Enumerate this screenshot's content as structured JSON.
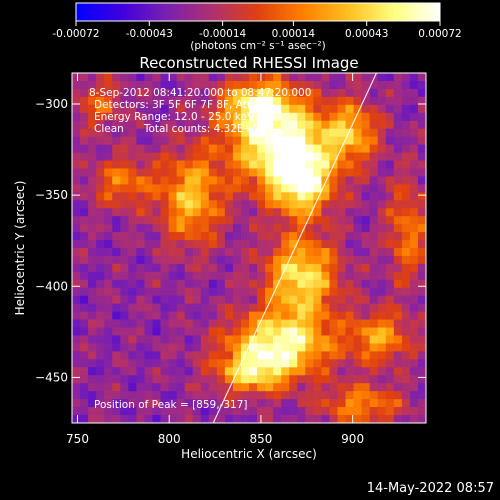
{
  "chart_data": {
    "type": "heatmap",
    "title": "Reconstructed RHESSI Image",
    "xlabel": "Heliocentric X (arcsec)",
    "ylabel": "Heliocentric Y (arcsec)",
    "xlim": [
      747,
      940
    ],
    "ylim": [
      -475,
      -283
    ],
    "x_ticks": [
      750,
      800,
      850,
      900
    ],
    "y_ticks": [
      -300,
      -350,
      -400,
      -450
    ],
    "colorbar": {
      "min": -0.00072,
      "max": 0.00072,
      "tick_values": [
        -0.00072,
        -0.00043,
        -0.00014,
        0.00014,
        0.00043,
        0.00072
      ],
      "tick_labels": [
        "-0.00072",
        "-0.00043",
        "-0.00014",
        "0.00014",
        "0.00043",
        "0.00072"
      ],
      "unit_label": "(photons cm⁻² s⁻¹ asec⁻²)",
      "colormap": [
        "#0000ff",
        "#4000e0",
        "#7a20b0",
        "#b03070",
        "#e04010",
        "#ff8000",
        "#ffc020",
        "#ffff80",
        "#ffffff"
      ]
    },
    "annotations": {
      "time_range": "8-Sep-2012 08:41:20.000 to 08:47:20.000",
      "detectors": "Detectors: 3F 5F 6F 7F 8F, Att 0",
      "energy": "Energy Range: 12.0 - 25.0 keV",
      "method_counts": "Clean      Total counts: 4.32E+03",
      "peak": "Position of Peak = [859,-317]"
    },
    "peak_position": [
      859,
      -317
    ],
    "limb_line": [
      [
        824,
        -475
      ],
      [
        913,
        -283
      ]
    ],
    "sources": [
      {
        "x": 862,
        "y": -323,
        "sigma_x": 20,
        "sigma_y": 16,
        "amp": 1.0
      },
      {
        "x": 848,
        "y": -300,
        "sigma_x": 14,
        "sigma_y": 10,
        "amp": 0.75
      },
      {
        "x": 872,
        "y": -345,
        "sigma_x": 12,
        "sigma_y": 12,
        "amp": 0.75
      },
      {
        "x": 812,
        "y": -352,
        "sigma_x": 12,
        "sigma_y": 18,
        "amp": 0.65
      },
      {
        "x": 872,
        "y": -395,
        "sigma_x": 14,
        "sigma_y": 16,
        "amp": 0.8
      },
      {
        "x": 860,
        "y": -432,
        "sigma_x": 20,
        "sigma_y": 12,
        "amp": 0.9
      },
      {
        "x": 845,
        "y": -448,
        "sigma_x": 14,
        "sigma_y": 8,
        "amp": 0.6
      },
      {
        "x": 915,
        "y": -428,
        "sigma_x": 12,
        "sigma_y": 10,
        "amp": 0.55
      },
      {
        "x": 900,
        "y": -315,
        "sigma_x": 10,
        "sigma_y": 12,
        "amp": 0.55
      },
      {
        "x": 775,
        "y": -343,
        "sigma_x": 12,
        "sigma_y": 10,
        "amp": 0.45
      },
      {
        "x": 905,
        "y": -465,
        "sigma_x": 16,
        "sigma_y": 8,
        "amp": 0.5
      },
      {
        "x": 762,
        "y": -300,
        "sigma_x": 10,
        "sigma_y": 10,
        "amp": 0.35
      },
      {
        "x": 930,
        "y": -370,
        "sigma_x": 8,
        "sigma_y": 20,
        "amp": 0.45
      }
    ]
  },
  "footer": {
    "timestamp": "14-May-2022 08:57"
  }
}
